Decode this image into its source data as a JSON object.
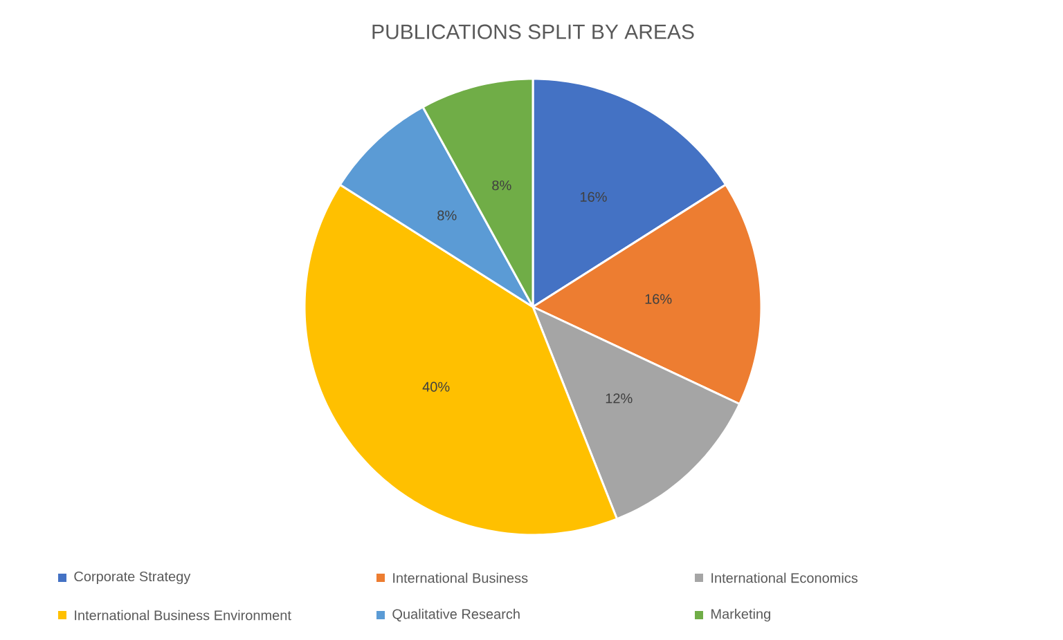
{
  "chart_data": {
    "type": "pie",
    "title": "PUBLICATIONS SPLIT BY AREAS",
    "categories": [
      "Corporate Strategy",
      "International Business",
      "International Economics",
      "International Business Environment",
      "Qualitative Research",
      "Marketing"
    ],
    "values": [
      16,
      16,
      12,
      40,
      8,
      8
    ],
    "value_labels": [
      "16%",
      "16%",
      "12%",
      "40%",
      "8%",
      "8%"
    ],
    "colors": [
      "#4472c4",
      "#ed7d31",
      "#a5a5a5",
      "#ffc000",
      "#5b9bd5",
      "#70ad47"
    ],
    "legend": "bottom"
  }
}
